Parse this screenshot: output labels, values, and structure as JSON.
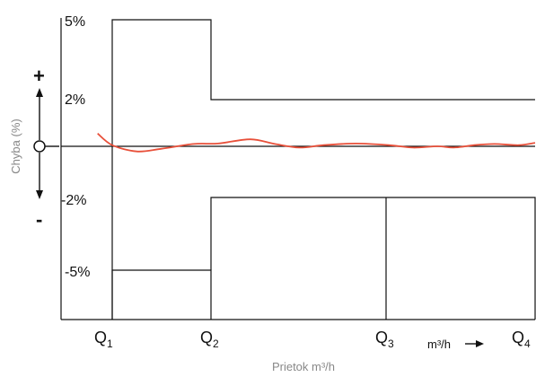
{
  "chart_data": {
    "type": "line",
    "title": "",
    "ylabel": "Chyba (%)",
    "xlabel": "Prietok m³/h",
    "x_unit_label": "m³/h",
    "y_tick_labels": [
      "5%",
      "2%",
      "O",
      "-2%",
      "-5%"
    ],
    "x_tick_labels": [
      {
        "main": "Q",
        "sub": "1"
      },
      {
        "main": "Q",
        "sub": "2"
      },
      {
        "main": "Q",
        "sub": "3"
      },
      {
        "main": "Q",
        "sub": "4"
      }
    ],
    "plus_sign": "+",
    "minus_sign": "-",
    "colors": {
      "curve": "#e8503a",
      "lines": "#111111",
      "axis_title": "#888888"
    },
    "error_limits": {
      "upper": [
        {
          "from": "Q1",
          "to": "Q2",
          "value": 5
        },
        {
          "from": "Q2",
          "to": "Q4",
          "value": 2
        }
      ],
      "lower": [
        {
          "from": "Q1",
          "to": "Q2",
          "value": -5
        },
        {
          "from": "Q2",
          "to": "Q4",
          "value": -2
        }
      ]
    },
    "series": [
      {
        "values_note": "",
        "x": [
          0.82,
          1.0,
          1.3,
          1.6,
          2.0,
          2.3,
          2.7,
          3.0,
          3.3,
          3.6,
          4.0,
          4.4,
          4.7,
          5.0,
          5.2,
          5.45,
          5.7,
          6.0,
          6.2
        ],
        "y": [
          0.55,
          0.05,
          -0.2,
          -0.1,
          0.1,
          0.12,
          0.3,
          0.1,
          -0.05,
          0.05,
          0.12,
          0.05,
          -0.05,
          0.0,
          -0.05,
          0.05,
          0.1,
          0.05,
          0.15
        ]
      }
    ]
  }
}
